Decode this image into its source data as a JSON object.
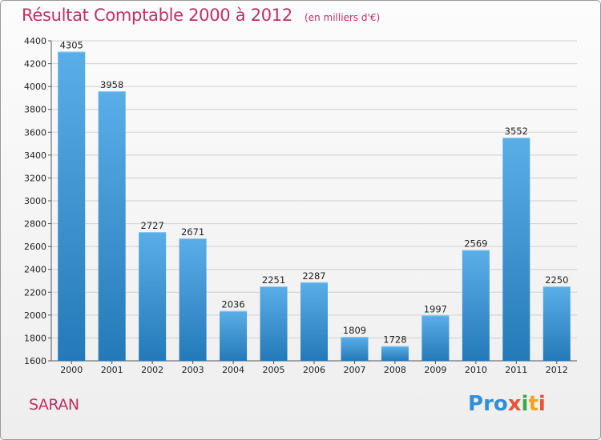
{
  "title": "Résultat Comptable 2000 à 2012",
  "subtitle": "(en milliers d'€)",
  "city": "SARAN",
  "logo": {
    "letters": [
      "P",
      "r",
      "o",
      "x",
      "i",
      "t",
      "i"
    ],
    "colors": [
      "#2f8fd8",
      "#2f8fd8",
      "#2f8fd8",
      "#e8533a",
      "#3aa84a",
      "#f3a21e",
      "#e8533a"
    ]
  },
  "colors": {
    "bar_light": "#5aaee8",
    "bar_dark": "#2479b8",
    "title": "#c2305f",
    "grid": "#cfcfcf"
  },
  "chart_data": {
    "type": "bar",
    "categories": [
      "2000",
      "2001",
      "2002",
      "2003",
      "2004",
      "2005",
      "2006",
      "2007",
      "2008",
      "2009",
      "2010",
      "2011",
      "2012"
    ],
    "values": [
      4305,
      3958,
      2727,
      2671,
      2036,
      2251,
      2287,
      1809,
      1728,
      1997,
      2569,
      3552,
      2250
    ],
    "ylim": [
      1600,
      4400
    ],
    "yticks": [
      1600,
      1800,
      2000,
      2200,
      2400,
      2600,
      2800,
      3000,
      3200,
      3400,
      3600,
      3800,
      4000,
      4200,
      4400
    ],
    "grid": true,
    "xlabel": "",
    "ylabel": ""
  }
}
